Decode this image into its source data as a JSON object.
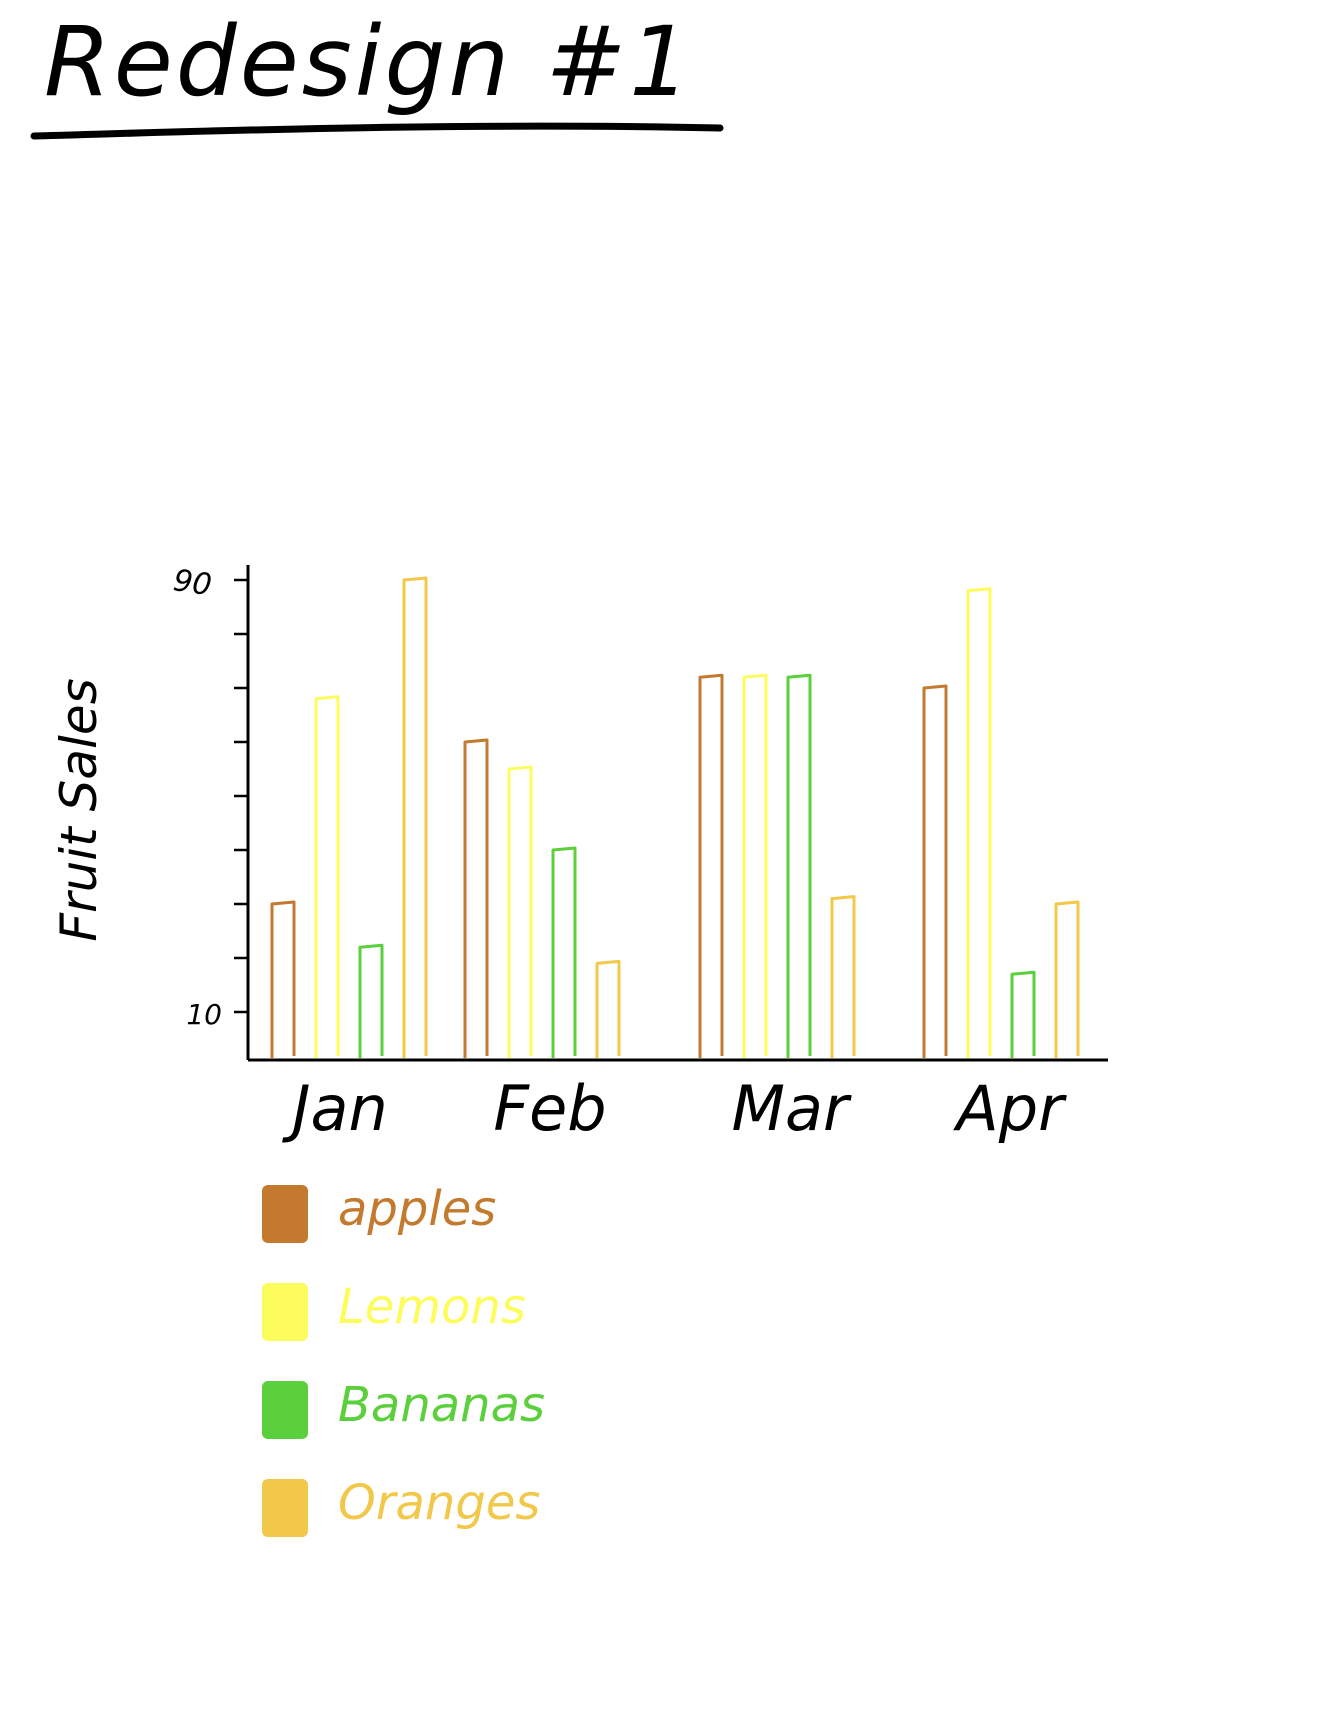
{
  "title": "Redesign #1",
  "chart_data": {
    "type": "bar",
    "title": "Redesign #1",
    "xlabel": "",
    "ylabel": "Fruit Sales",
    "ylim": [
      10,
      90
    ],
    "y_tick_labels": [
      "90",
      "10"
    ],
    "categories": [
      "Jan",
      "Feb",
      "Mar",
      "Apr"
    ],
    "series": [
      {
        "name": "apples",
        "color": "#c47a2e",
        "values": [
          30,
          60,
          72,
          70
        ]
      },
      {
        "name": "Lemons",
        "color": "#fcfc5c",
        "values": [
          68,
          55,
          72,
          88
        ]
      },
      {
        "name": "Bananas",
        "color": "#5ccf3c",
        "values": [
          22,
          40,
          72,
          17
        ]
      },
      {
        "name": "Oranges",
        "color": "#f2c84a",
        "values": [
          90,
          19,
          31,
          30
        ]
      }
    ],
    "legend_position": "bottom-left",
    "grid": false
  }
}
